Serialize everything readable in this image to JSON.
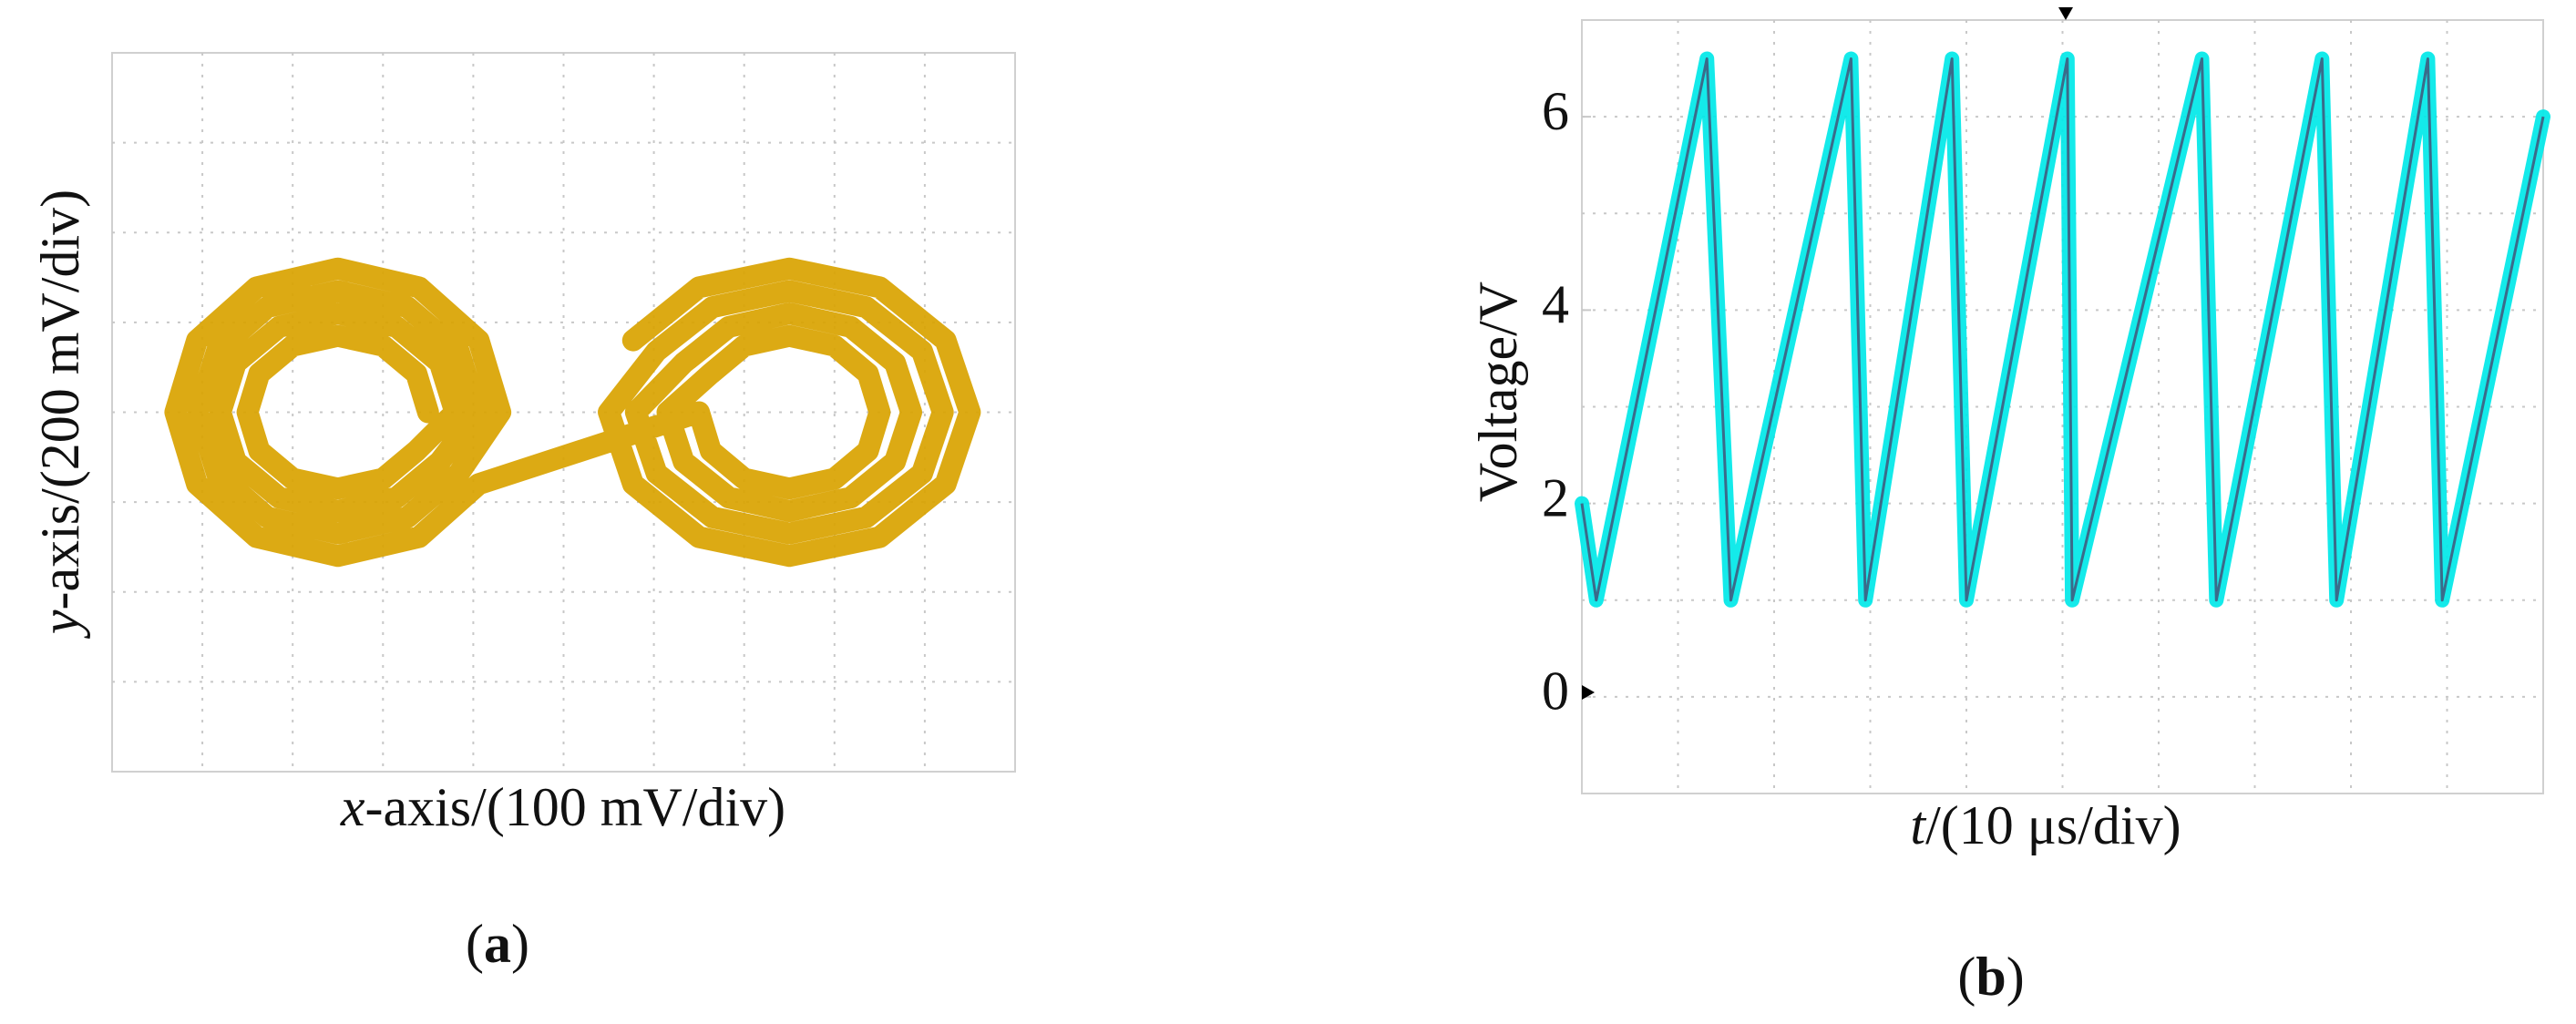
{
  "chart_data": [
    {
      "type": "line",
      "x_label_var": "x",
      "x_label": "-axis/(100 mV/div)",
      "y_label_var": "y",
      "y_label": "-axis/(200 mV/div)",
      "caption": [
        "(",
        "a",
        ")"
      ],
      "xlim": [
        -5,
        5
      ],
      "ylim": [
        -4,
        4
      ],
      "series": [
        {
          "color": "#d9a300",
          "x": [
            -1.5,
            -1.63,
            -2,
            -2.5,
            -3,
            -3.37,
            -3.5,
            -3.37,
            -3,
            -2.5,
            -2,
            -1.63,
            -1.2,
            -1.37,
            -1.85,
            -2.5,
            -3.15,
            -3.63,
            -3.8,
            -3.63,
            -3.15,
            -2.5,
            -1.85,
            -1.37,
            -0.95,
            -1.16,
            -1.73,
            -2.5,
            -3.28,
            -3.84,
            -4.05,
            -3.84,
            -3.28,
            -2.5,
            -1.73,
            -1.16,
            -0.7,
            -0.94,
            -1.6,
            -2.5,
            -3.4,
            -4.06,
            -4.3,
            -4.06,
            -3.4,
            -2.5,
            -1.6,
            -0.94,
            1.5,
            1.63,
            2,
            2.5,
            3,
            3.37,
            3.5,
            3.37,
            3,
            2.5,
            2,
            1.63,
            1.15,
            1.33,
            1.83,
            2.5,
            3.18,
            3.67,
            3.85,
            3.67,
            3.18,
            2.5,
            1.83,
            1.33,
            0.8,
            1.03,
            1.65,
            2.5,
            3.35,
            3.97,
            4.2,
            3.97,
            3.35,
            2.5,
            1.65,
            1.03,
            0.5,
            0.77,
            1.5,
            2.5,
            3.5,
            4.23,
            4.5,
            4.23,
            3.5,
            2.5,
            1.5,
            0.77
          ],
          "values": [
            0,
            0.43,
            0.74,
            0.85,
            0.74,
            0.43,
            0,
            -0.43,
            -0.74,
            -0.85,
            -0.74,
            -0.43,
            0,
            0.55,
            0.95,
            1.1,
            0.95,
            0.55,
            0,
            -0.55,
            -0.95,
            -1.1,
            -0.95,
            -0.55,
            0,
            0.68,
            1.17,
            1.35,
            1.17,
            0.68,
            0,
            -0.68,
            -1.17,
            -1.35,
            -1.17,
            -0.68,
            0,
            0.8,
            1.39,
            1.6,
            1.39,
            0.8,
            0,
            -0.8,
            -1.39,
            -1.6,
            -1.39,
            -0.8,
            0,
            -0.43,
            -0.74,
            -0.85,
            -0.74,
            -0.43,
            0,
            0.43,
            0.74,
            0.85,
            0.74,
            0.43,
            0,
            -0.55,
            -0.95,
            -1.1,
            -0.95,
            -0.55,
            0,
            0.55,
            0.95,
            1.1,
            0.95,
            0.55,
            0,
            -0.68,
            -1.17,
            -1.35,
            -1.17,
            -0.68,
            0,
            0.68,
            1.17,
            1.35,
            1.17,
            0.68,
            0,
            -0.8,
            -1.39,
            -1.6,
            -1.39,
            -0.8,
            0,
            0.8,
            1.39,
            1.6,
            1.39,
            0.8
          ]
        }
      ]
    },
    {
      "type": "line",
      "x_label_var": "t",
      "x_label": "/(10 μs/div)",
      "y_label": "Voltage/V",
      "caption": [
        "(",
        "b",
        ")"
      ],
      "xlim": [
        0,
        10
      ],
      "ylim": [
        -1,
        7
      ],
      "yticks": [
        0,
        2,
        4,
        6
      ],
      "series": [
        {
          "color": "#00e8e8",
          "x": [
            0,
            0.15,
            1.3,
            1.55,
            2.8,
            2.95,
            3.85,
            4.0,
            5.05,
            5.1,
            6.45,
            6.6,
            7.7,
            7.85,
            8.8,
            8.95,
            10
          ],
          "values": [
            2,
            1,
            6.6,
            1,
            6.6,
            1,
            6.6,
            1,
            6.6,
            1,
            6.6,
            1,
            6.6,
            1,
            6.6,
            1,
            6
          ]
        }
      ]
    }
  ]
}
